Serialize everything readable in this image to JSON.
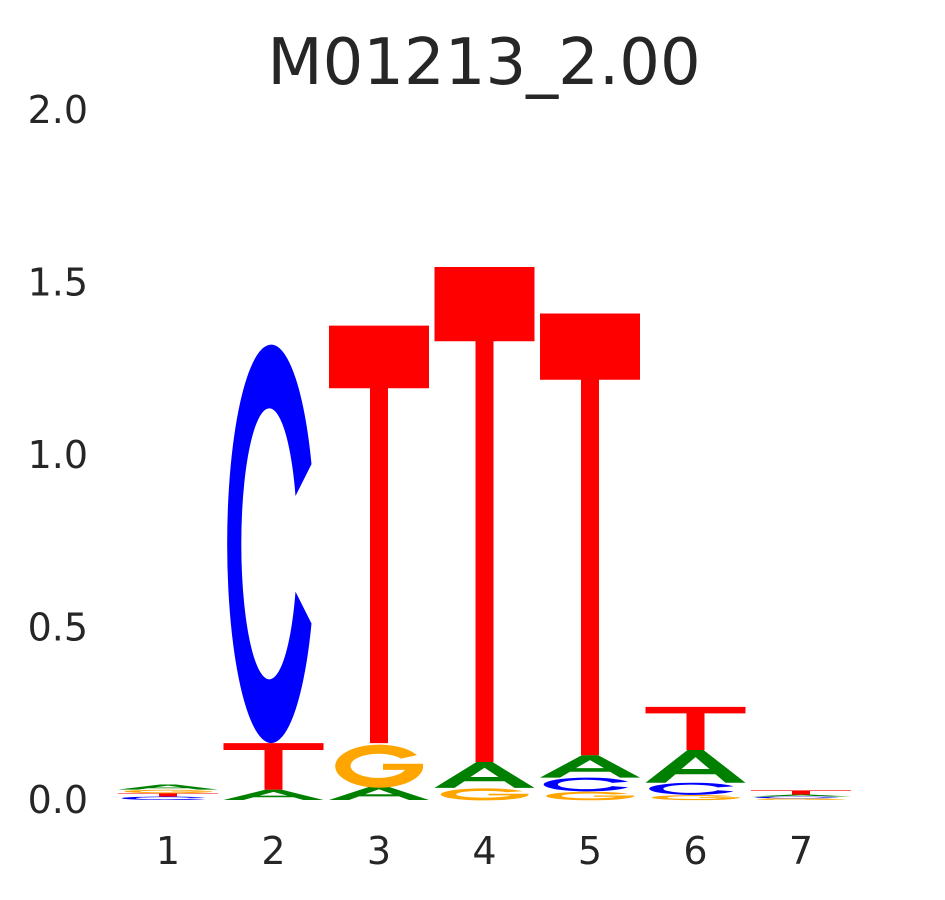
{
  "chart_data": {
    "type": "sequence-logo",
    "title": "M01213_2.00",
    "xlabel": "",
    "ylabel": "",
    "ylim": [
      0,
      2.0
    ],
    "y_ticks": [
      "0.0",
      "0.5",
      "1.0",
      "1.5",
      "2.0"
    ],
    "categories": [
      "1",
      "2",
      "3",
      "4",
      "5",
      "6",
      "7"
    ],
    "grid": false,
    "colors": {
      "A": "#008000",
      "C": "#0000ff",
      "G": "#ffa500",
      "T": "#ff0000"
    },
    "positions": [
      {
        "position": "1",
        "stack": [
          {
            "base": "C",
            "height": 0.01
          },
          {
            "base": "T",
            "height": 0.01
          },
          {
            "base": "G",
            "height": 0.01
          },
          {
            "base": "A",
            "height": 0.015
          }
        ]
      },
      {
        "position": "2",
        "stack": [
          {
            "base": "A",
            "height": 0.03
          },
          {
            "base": "T",
            "height": 0.135
          },
          {
            "base": "C",
            "height": 1.155
          }
        ]
      },
      {
        "position": "3",
        "stack": [
          {
            "base": "A",
            "height": 0.04
          },
          {
            "base": "G",
            "height": 0.125
          },
          {
            "base": "T",
            "height": 1.21
          }
        ]
      },
      {
        "position": "4",
        "stack": [
          {
            "base": "G",
            "height": 0.035
          },
          {
            "base": "A",
            "height": 0.075
          },
          {
            "base": "T",
            "height": 1.435
          }
        ]
      },
      {
        "position": "5",
        "stack": [
          {
            "base": "G",
            "height": 0.025
          },
          {
            "base": "C",
            "height": 0.04
          },
          {
            "base": "A",
            "height": 0.065
          },
          {
            "base": "T",
            "height": 1.28
          }
        ]
      },
      {
        "position": "6",
        "stack": [
          {
            "base": "G",
            "height": 0.015
          },
          {
            "base": "C",
            "height": 0.035
          },
          {
            "base": "A",
            "height": 0.095
          },
          {
            "base": "T",
            "height": 0.125
          }
        ]
      },
      {
        "position": "7",
        "stack": [
          {
            "base": "G",
            "height": 0.005
          },
          {
            "base": "C",
            "height": 0.005
          },
          {
            "base": "A",
            "height": 0.006
          },
          {
            "base": "T",
            "height": 0.012
          }
        ]
      }
    ]
  }
}
